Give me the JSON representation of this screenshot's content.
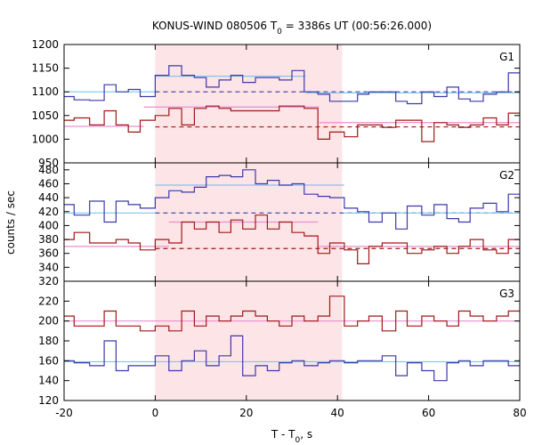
{
  "chart_data": {
    "type": "line",
    "title": {
      "main": "KONUS-WIND 080506 T",
      "sub": "0",
      "rest": " = 3386s UT (00:56:26.000)"
    },
    "xlabel": {
      "main": "T - T",
      "sub": "0",
      "rest": ", s"
    },
    "ylabel": "counts / sec",
    "xlim": [
      -20,
      80
    ],
    "xticks": [
      "-20",
      "0",
      "20",
      "40",
      "60",
      "80"
    ],
    "highlight_interval": [
      0,
      41
    ],
    "colors": {
      "blue": "#3a3aaa",
      "red": "#a01818",
      "cyan": "#7fc5e8",
      "pink": "#e890d0",
      "band": "#fde4e6"
    },
    "panels": [
      {
        "name": "G1",
        "ylim": [
          950,
          1200
        ],
        "yticks": [
          "950",
          "1000",
          "1050",
          "1100",
          "1150",
          "1200"
        ],
        "bin_edges": [
          -20,
          -17.8,
          -14.4,
          -11.2,
          -8.6,
          -5.9,
          -3.3,
          0,
          3,
          5.8,
          8.6,
          11.2,
          14,
          16.6,
          19.2,
          22,
          24.6,
          27.2,
          30,
          32.7,
          35.7,
          38.3,
          41.5,
          44.4,
          46.9,
          49.8,
          52.8,
          55.3,
          58.5,
          61.2,
          64,
          66.6,
          69.1,
          72,
          74.9,
          77.5,
          80
        ],
        "series": [
          {
            "name": "blue",
            "values": [
              1090,
              1083,
              1082,
              1115,
              1100,
              1105,
              1090,
              1135,
              1155,
              1135,
              1130,
              1110,
              1125,
              1135,
              1120,
              1130,
              1130,
              1125,
              1145,
              1100,
              1095,
              1080,
              1080,
              1095,
              1100,
              1100,
              1080,
              1075,
              1100,
              1090,
              1110,
              1085,
              1080,
              1095,
              1100,
              1140
            ]
          },
          {
            "name": "red",
            "values": [
              1040,
              1045,
              1030,
              1060,
              1030,
              1015,
              1040,
              1050,
              1065,
              1030,
              1065,
              1070,
              1065,
              1060,
              1060,
              1060,
              1060,
              1070,
              1070,
              1065,
              1000,
              1015,
              1005,
              1030,
              1030,
              1025,
              1040,
              1040,
              995,
              1035,
              1030,
              1025,
              1030,
              1045,
              1030,
              1055
            ]
          }
        ],
        "levels": [
          {
            "series": "blue-bg",
            "value": 1100,
            "style": "dash",
            "from": 0,
            "to": 80
          },
          {
            "series": "red-bg",
            "value": 1026,
            "style": "dash",
            "from": 0,
            "to": 80
          },
          {
            "series": "blue-fit",
            "value": 1100,
            "style": "solid",
            "from": -20,
            "to": 0
          },
          {
            "series": "blue-fit",
            "value": 1133,
            "style": "solid",
            "from": 0,
            "to": 33
          },
          {
            "series": "blue-fit",
            "value": 1098,
            "style": "solid",
            "from": 33,
            "to": 80
          },
          {
            "series": "red-fit",
            "value": 1027,
            "style": "solid",
            "from": -20,
            "to": -2.5
          },
          {
            "series": "red-fit",
            "value": 1068,
            "style": "solid",
            "from": -2.5,
            "to": 36
          },
          {
            "series": "red-fit",
            "value": 1035,
            "style": "solid",
            "from": 36,
            "to": 80
          }
        ]
      },
      {
        "name": "G2",
        "ylim": [
          320,
          490
        ],
        "yticks": [
          "320",
          "340",
          "360",
          "380",
          "400",
          "420",
          "440",
          "460",
          "480"
        ],
        "bin_edges": [
          -20,
          -17.8,
          -14.4,
          -11.2,
          -8.6,
          -5.9,
          -3.3,
          0,
          3,
          5.8,
          8.6,
          11.2,
          14,
          16.6,
          19.2,
          22,
          24.6,
          27.2,
          30,
          32.7,
          35.7,
          38.3,
          41.5,
          44.4,
          46.9,
          49.8,
          52.8,
          55.3,
          58.5,
          61.2,
          64,
          66.6,
          69.1,
          72,
          74.9,
          77.5,
          80
        ],
        "series": [
          {
            "name": "blue",
            "values": [
              430,
              415,
              435,
              405,
              435,
              430,
              425,
              440,
              450,
              448,
              455,
              470,
              472,
              470,
              480,
              460,
              465,
              458,
              460,
              445,
              442,
              440,
              425,
              420,
              405,
              418,
              395,
              428,
              415,
              430,
              410,
              405,
              425,
              432,
              420,
              445
            ]
          },
          {
            "name": "red",
            "values": [
              380,
              390,
              375,
              375,
              380,
              375,
              365,
              380,
              375,
              405,
              395,
              405,
              390,
              408,
              395,
              415,
              395,
              405,
              390,
              385,
              360,
              375,
              365,
              345,
              370,
              375,
              375,
              360,
              365,
              370,
              360,
              370,
              380,
              365,
              360,
              380
            ]
          }
        ],
        "levels": [
          {
            "series": "blue-bg",
            "value": 418,
            "style": "dash",
            "from": 0,
            "to": 80
          },
          {
            "series": "red-bg",
            "value": 367,
            "style": "dash",
            "from": 0,
            "to": 80
          },
          {
            "series": "blue-fit",
            "value": 418,
            "style": "solid",
            "from": -20,
            "to": 0
          },
          {
            "series": "blue-fit",
            "value": 458,
            "style": "solid",
            "from": 0,
            "to": 41.5
          },
          {
            "series": "blue-fit",
            "value": 418,
            "style": "solid",
            "from": 41.5,
            "to": 80
          },
          {
            "series": "red-fit",
            "value": 370,
            "style": "solid",
            "from": -20,
            "to": 3
          },
          {
            "series": "red-fit",
            "value": 405,
            "style": "solid",
            "from": 3,
            "to": 35.7
          },
          {
            "series": "red-fit",
            "value": 370,
            "style": "solid",
            "from": 35.7,
            "to": 80
          }
        ]
      },
      {
        "name": "G3",
        "ylim": [
          120,
          240
        ],
        "yticks": [
          "120",
          "140",
          "160",
          "180",
          "200",
          "220"
        ],
        "bin_edges": [
          -20,
          -17.8,
          -14.4,
          -11.2,
          -8.6,
          -5.9,
          -3.3,
          0,
          3,
          5.8,
          8.6,
          11.2,
          14,
          16.6,
          19.2,
          22,
          24.6,
          27.2,
          30,
          32.7,
          35.7,
          38.3,
          41.5,
          44.4,
          46.9,
          49.8,
          52.8,
          55.3,
          58.5,
          61.2,
          64,
          66.6,
          69.1,
          72,
          74.9,
          77.5,
          80
        ],
        "series": [
          {
            "name": "blue",
            "values": [
              160,
              158,
              155,
              180,
              150,
              155,
              155,
              165,
              150,
              160,
              170,
              155,
              165,
              185,
              145,
              155,
              150,
              158,
              160,
              155,
              158,
              160,
              158,
              160,
              160,
              165,
              145,
              158,
              150,
              140,
              158,
              160,
              155,
              160,
              160,
              155
            ]
          },
          {
            "name": "red",
            "values": [
              205,
              195,
              195,
              210,
              195,
              195,
              190,
              195,
              190,
              210,
              195,
              205,
              200,
              205,
              210,
              205,
              200,
              195,
              205,
              200,
              205,
              225,
              195,
              200,
              205,
              190,
              210,
              195,
              205,
              200,
              195,
              210,
              205,
              200,
              205,
              210
            ]
          }
        ],
        "levels": [
          {
            "series": "blue-fit",
            "value": 159,
            "style": "solid",
            "from": -20,
            "to": 80
          },
          {
            "series": "red-fit",
            "value": 200,
            "style": "solid",
            "from": -20,
            "to": 80
          }
        ]
      }
    ]
  }
}
